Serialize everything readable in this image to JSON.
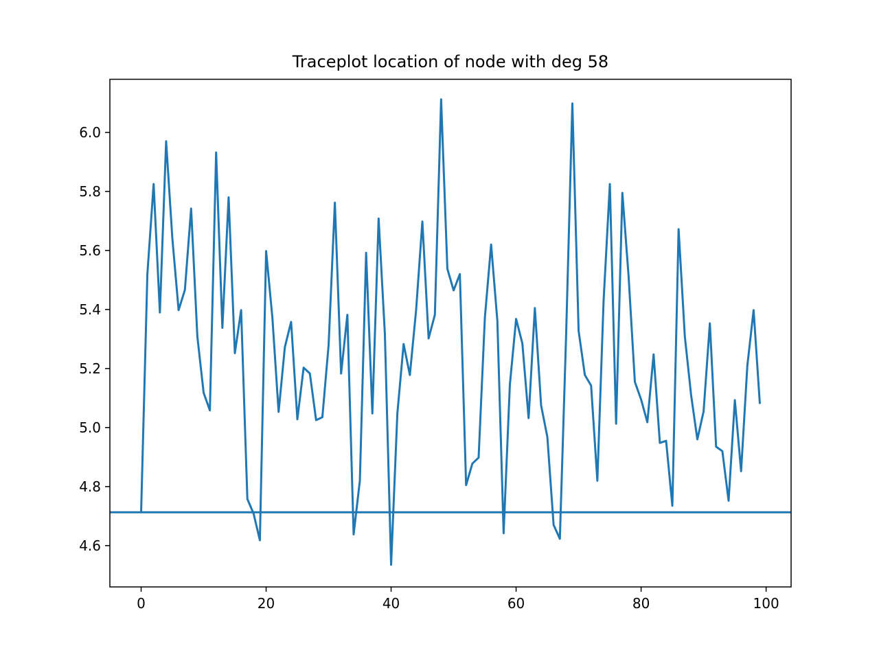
{
  "chart_data": {
    "type": "line",
    "title": "Traceplot location of node with deg 58",
    "xlabel": "",
    "ylabel": "",
    "xlim": [
      -5,
      104
    ],
    "ylim": [
      4.46,
      6.18
    ],
    "x_ticks": [
      0,
      20,
      40,
      60,
      80,
      100
    ],
    "x_tick_labels": [
      "0",
      "20",
      "40",
      "60",
      "80",
      "100"
    ],
    "y_ticks": [
      4.6,
      4.8,
      5.0,
      5.2,
      5.4,
      5.6,
      5.8,
      6.0
    ],
    "y_tick_labels": [
      "4.6",
      "4.8",
      "5.0",
      "5.2",
      "5.4",
      "5.6",
      "5.8",
      "6.0"
    ],
    "grid": false,
    "series": [
      {
        "color": "#1f77b4",
        "x": [
          0,
          1,
          2,
          3,
          4,
          5,
          6,
          7,
          8,
          9,
          10,
          11,
          12,
          13,
          14,
          15,
          16,
          17,
          18,
          19,
          20,
          21,
          22,
          23,
          24,
          25,
          26,
          27,
          28,
          29,
          30,
          31,
          32,
          33,
          34,
          35,
          36,
          37,
          38,
          39,
          40,
          41,
          42,
          43,
          44,
          45,
          46,
          47,
          48,
          49,
          50,
          51,
          52,
          53,
          54,
          55,
          56,
          57,
          58,
          59,
          60,
          61,
          62,
          63,
          64,
          65,
          66,
          67,
          68,
          69,
          70,
          71,
          72,
          73,
          74,
          75,
          76,
          77,
          78,
          79,
          80,
          81,
          82,
          83,
          84,
          85,
          86,
          87,
          88,
          89,
          90,
          91,
          92,
          93,
          94,
          95,
          96,
          97,
          98,
          99
        ],
        "y": [
          4.713,
          5.52,
          5.825,
          5.39,
          5.97,
          5.64,
          5.398,
          5.466,
          5.742,
          5.308,
          5.118,
          5.058,
          5.932,
          5.338,
          5.78,
          5.252,
          5.398,
          4.758,
          4.708,
          4.618,
          5.598,
          5.373,
          5.053,
          5.273,
          5.358,
          5.028,
          5.203,
          5.183,
          5.025,
          5.035,
          5.28,
          5.762,
          5.183,
          5.382,
          4.638,
          4.82,
          5.592,
          5.048,
          5.708,
          5.318,
          4.535,
          5.048,
          5.283,
          5.178,
          5.398,
          5.698,
          5.302,
          5.382,
          6.112,
          5.538,
          5.465,
          5.52,
          4.805,
          4.878,
          4.898,
          5.372,
          5.62,
          5.362,
          4.642,
          5.145,
          5.368,
          5.285,
          5.032,
          5.405,
          5.075,
          4.968,
          4.67,
          4.623,
          5.312,
          6.098,
          5.328,
          5.178,
          5.142,
          4.82,
          5.43,
          5.825,
          5.013,
          5.795,
          5.512,
          5.155,
          5.095,
          5.018,
          5.248,
          4.948,
          4.955,
          4.735,
          5.672,
          5.308,
          5.11,
          4.96,
          5.055,
          5.353,
          4.935,
          4.92,
          4.752,
          5.093,
          4.852,
          5.21,
          5.398,
          5.08
        ]
      }
    ],
    "hline": {
      "y": 4.713,
      "color": "#1f77b4"
    }
  }
}
